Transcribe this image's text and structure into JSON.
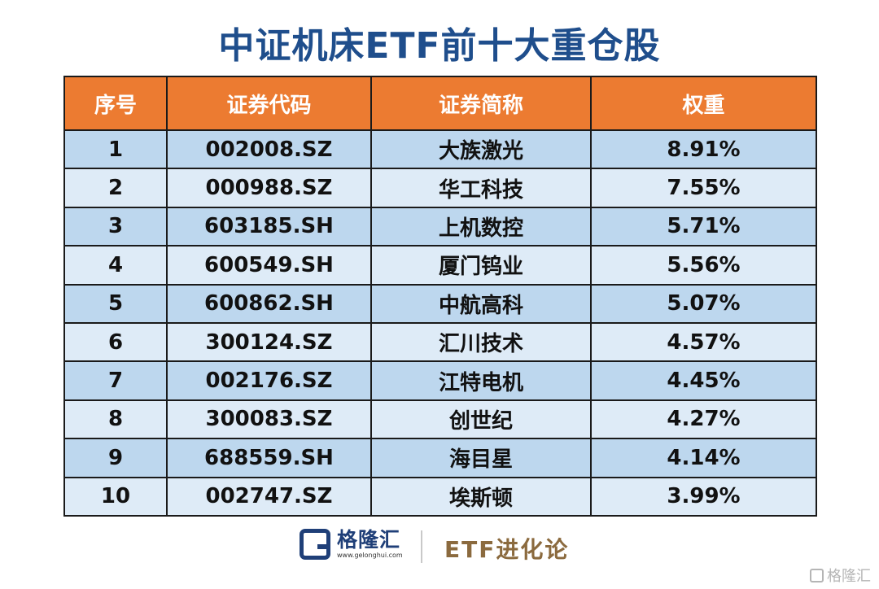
{
  "title": "中证机床ETF前十大重仓股",
  "table": {
    "headers": [
      "序号",
      "证券代码",
      "证券简称",
      "权重"
    ],
    "rows": [
      [
        "1",
        "002008.SZ",
        "大族激光",
        "8.91%"
      ],
      [
        "2",
        "000988.SZ",
        "华工科技",
        "7.55%"
      ],
      [
        "3",
        "603185.SH",
        "上机数控",
        "5.71%"
      ],
      [
        "4",
        "600549.SH",
        "厦门钨业",
        "5.56%"
      ],
      [
        "5",
        "600862.SH",
        "中航高科",
        "5.07%"
      ],
      [
        "6",
        "300124.SZ",
        "汇川技术",
        "4.57%"
      ],
      [
        "7",
        "002176.SZ",
        "江特电机",
        "4.45%"
      ],
      [
        "8",
        "300083.SZ",
        "创世纪",
        "4.27%"
      ],
      [
        "9",
        "688559.SH",
        "海目星",
        "4.14%"
      ],
      [
        "10",
        "002747.SZ",
        "埃斯顿",
        "3.99%"
      ]
    ],
    "colors": {
      "header_bg": "#ec7b31",
      "row_odd": "#bdd7ee",
      "row_even": "#deebf7"
    }
  },
  "footer": {
    "brand_name": "格隆汇",
    "brand_url": "www.gelonghui.com",
    "brand_icon": "gelonghui-logo-icon",
    "column_name": "ETF进化论"
  },
  "watermark": {
    "text": "格隆汇",
    "icon": "gelonghui-logo-icon"
  }
}
